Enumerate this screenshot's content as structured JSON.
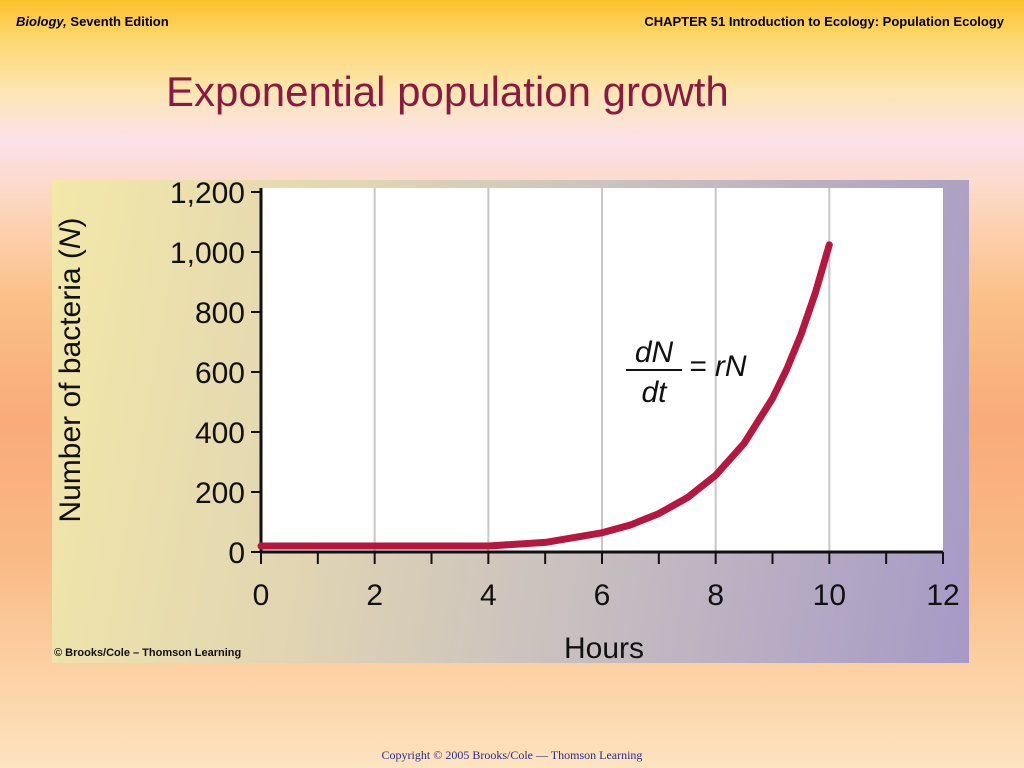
{
  "header": {
    "book_italic": "Biology,",
    "book_rest": " Seventh Edition",
    "chapter": "CHAPTER 51 Introduction to Ecology: Population Ecology"
  },
  "slide": {
    "title": "Exponential population growth"
  },
  "figure": {
    "credit": "© Brooks/Cole – Thomson Learning",
    "equation": {
      "num": "dN",
      "den": "dt",
      "rhs": "= rN"
    }
  },
  "footer": {
    "copyright": "Copyright © 2005 Brooks/Cole — Thomson Learning"
  },
  "colors": {
    "title": "#8b1a43",
    "curve": "#b5173f",
    "footer": "#2a2a8c"
  },
  "chart_data": {
    "type": "line",
    "xlabel": "Hours",
    "ylabel_prefix": "Number of bacteria (",
    "ylabel_var": "N",
    "ylabel_suffix": ")",
    "xlim": [
      0,
      12
    ],
    "ylim": [
      0,
      1200
    ],
    "x_ticks": [
      0,
      2,
      4,
      6,
      8,
      10,
      12
    ],
    "y_ticks": [
      0,
      200,
      400,
      600,
      800,
      1000,
      1200
    ],
    "y_tick_labels": [
      "0",
      "200",
      "400",
      "600",
      "800",
      "1,000",
      "1,200"
    ],
    "grid": "vertical",
    "series": [
      {
        "x": [
          0,
          1,
          2,
          3,
          4,
          5,
          6,
          6.5,
          7,
          7.5,
          8,
          8.5,
          9,
          9.25,
          9.5,
          9.75,
          10
        ],
        "values": [
          1,
          2,
          4,
          8,
          16,
          32,
          64,
          90,
          128,
          181,
          256,
          362,
          512,
          609,
          724,
          861,
          1024
        ]
      }
    ]
  }
}
